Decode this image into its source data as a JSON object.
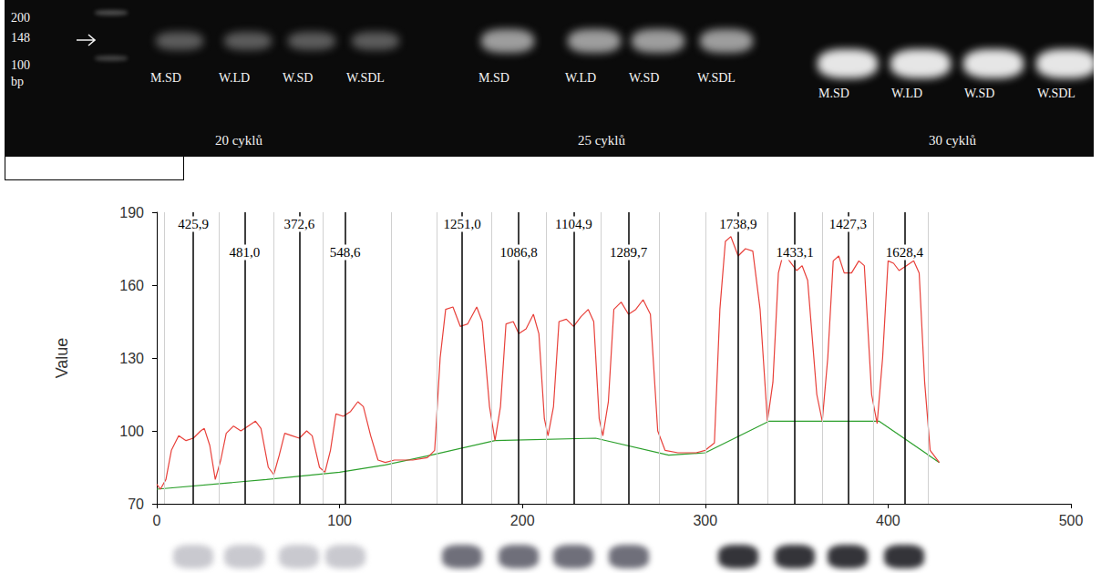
{
  "gel": {
    "ladder": [
      "200",
      "148",
      "100",
      "bp"
    ],
    "groups": [
      {
        "label": "20 cyklů",
        "lanes": [
          "M.SD",
          "W.LD",
          "W.SD",
          "W.SDL"
        ]
      },
      {
        "label": "25 cyklů",
        "lanes": [
          "M.SD",
          "W.LD",
          "W.SD",
          "W.SDL"
        ]
      },
      {
        "label": "30 cyklů",
        "lanes": [
          "M.SD",
          "W.LD",
          "W.SD",
          "W.SDL"
        ]
      }
    ]
  },
  "chart_data": {
    "type": "line",
    "y_label": "Value",
    "xlim": [
      0,
      500
    ],
    "xticks": [
      0,
      100,
      200,
      300,
      400,
      500
    ],
    "ylim": [
      70,
      190
    ],
    "yticks": [
      70,
      100,
      130,
      160,
      190
    ],
    "grid": false,
    "series": [
      {
        "color": "#e8403a",
        "x": [
          0,
          2,
          5,
          8,
          12,
          16,
          20,
          24,
          26,
          29,
          32,
          35,
          38,
          42,
          46,
          50,
          54,
          57,
          61,
          64,
          67,
          70,
          74,
          78,
          82,
          85,
          89,
          92,
          95,
          98,
          102,
          106,
          110,
          113,
          117,
          121,
          125,
          130,
          140,
          148,
          152,
          155,
          158,
          162,
          166,
          170,
          175,
          178,
          182,
          185,
          188,
          191,
          195,
          198,
          202,
          206,
          209,
          212,
          214,
          217,
          220,
          224,
          228,
          232,
          236,
          239,
          242,
          244,
          247,
          250,
          254,
          258,
          262,
          266,
          270,
          274,
          278,
          285,
          295,
          300,
          305,
          308,
          311,
          314,
          318,
          322,
          326,
          330,
          334,
          337,
          340,
          343,
          346,
          350,
          353,
          356,
          361,
          364,
          367,
          370,
          373,
          376,
          380,
          384,
          387,
          391,
          394,
          397,
          400,
          403,
          406,
          410,
          414,
          417,
          420,
          423,
          426,
          428
        ],
        "values": [
          78,
          76,
          80,
          92,
          98,
          96,
          97,
          100,
          101,
          94,
          80,
          88,
          99,
          102,
          100,
          102,
          104,
          101,
          85,
          82,
          90,
          99,
          98,
          97,
          100,
          98,
          85,
          83,
          92,
          107,
          106,
          108,
          112,
          110,
          98,
          88,
          87,
          88,
          88,
          89,
          92,
          130,
          150,
          151,
          143,
          144,
          151,
          145,
          110,
          96,
          110,
          144,
          145,
          140,
          142,
          148,
          140,
          105,
          98,
          110,
          145,
          146,
          143,
          147,
          150,
          145,
          105,
          98,
          112,
          150,
          153,
          148,
          150,
          154,
          148,
          100,
          92,
          91,
          91,
          92,
          95,
          150,
          178,
          180,
          172,
          175,
          174,
          150,
          104,
          120,
          165,
          174,
          170,
          166,
          168,
          162,
          115,
          104,
          130,
          170,
          172,
          165,
          165,
          170,
          168,
          115,
          103,
          130,
          170,
          169,
          166,
          168,
          170,
          165,
          120,
          92,
          89,
          87
        ]
      },
      {
        "color": "#2ca02c",
        "x": [
          0,
          60,
          100,
          125,
          150,
          185,
          240,
          280,
          300,
          335,
          395,
          428
        ],
        "values": [
          76,
          80,
          83,
          86,
          90,
          96,
          97,
          90,
          91,
          104,
          104,
          87
        ]
      }
    ],
    "peaks": {
      "x": [
        20,
        48,
        78,
        103,
        167,
        198,
        228,
        258,
        318,
        349,
        378,
        409
      ],
      "values": [
        425.9,
        481.0,
        372.6,
        548.6,
        1251.0,
        1086.8,
        1104.9,
        1289.7,
        1738.9,
        1433.1,
        1427.3,
        1628.4
      ],
      "value_labels": [
        "425,9",
        "481,0",
        "372,6",
        "548,6",
        "1251,0",
        "1086,8",
        "1104,9",
        "1289,7",
        "1738,9",
        "1433,1",
        "1427,3",
        "1628,4"
      ]
    },
    "boundaries": [
      4,
      34,
      64,
      91,
      128,
      153,
      183,
      213,
      243,
      275,
      300,
      334,
      364,
      392,
      422
    ]
  }
}
